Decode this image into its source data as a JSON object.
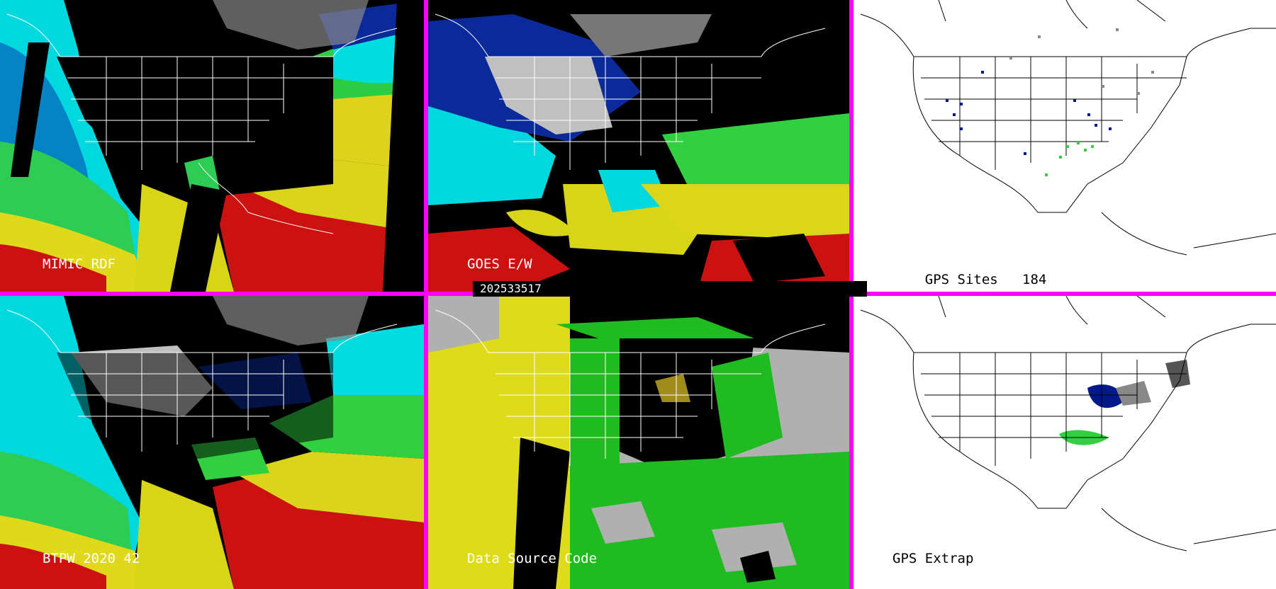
{
  "timestamp": "202533517",
  "panels": [
    {
      "id": "mimic",
      "label": "MIMIC RDF",
      "theme": "dark"
    },
    {
      "id": "goes",
      "label": "GOES E/W",
      "theme": "dark"
    },
    {
      "id": "gps-sites",
      "label": "GPS Sites",
      "count": "184",
      "theme": "light"
    },
    {
      "id": "btpw",
      "label": "BTPW 2020 42",
      "theme": "dark"
    },
    {
      "id": "data-source",
      "label": "Data Source Code",
      "theme": "dark"
    },
    {
      "id": "gps-extrap",
      "label": "GPS Extrap",
      "theme": "light"
    }
  ],
  "colors": {
    "divider": "#ff00ff",
    "moist-cyan": "#00e5e5",
    "green": "#33dd33",
    "yellow": "#dddd22",
    "red": "#cc1111",
    "navy": "#001a8c",
    "gray": "#b0b0b0"
  }
}
